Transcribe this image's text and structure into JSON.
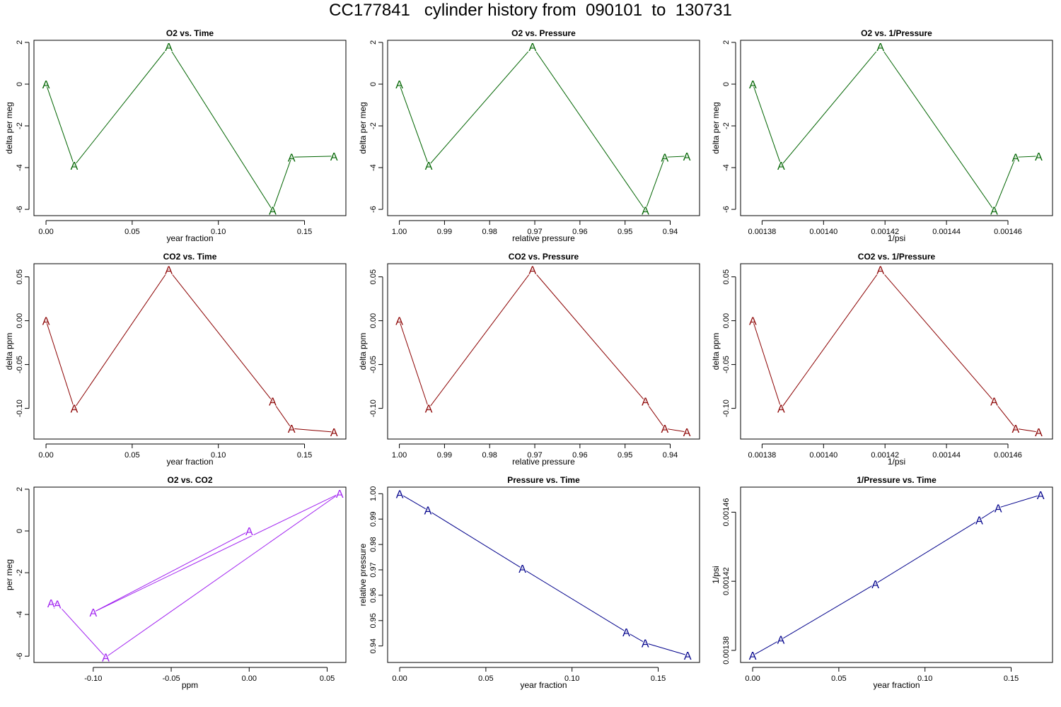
{
  "page": {
    "title": "CC177841   cylinder history from  090101  to  130731"
  },
  "colors": {
    "o2": "#006400",
    "co2": "#8b0000",
    "o2co2": "#a020f0",
    "pressure": "#00008b"
  },
  "chart_data": [
    {
      "type": "line",
      "title": "O2 vs. Time",
      "xlabel": "year fraction",
      "ylabel": "delta per meg",
      "color_key": "o2",
      "marker": "A",
      "xlim": [
        -0.007,
        0.174
      ],
      "ylim": [
        -6.3,
        2.1
      ],
      "xticks": [
        0,
        0.05,
        0.1,
        0.15
      ],
      "xtick_labels": [
        "0.00",
        "0.05",
        "0.10",
        "0.15"
      ],
      "yticks": [
        2,
        0,
        -2,
        -4,
        -6
      ],
      "ytick_labels": [
        "2",
        "0",
        "-2",
        "-4",
        "-6"
      ],
      "x": [
        0.0,
        0.0164,
        0.0712,
        0.1315,
        0.1425,
        0.1671
      ],
      "y": [
        0.0,
        -3.9,
        1.8,
        -6.05,
        -3.5,
        -3.45
      ]
    },
    {
      "type": "line",
      "title": "O2 vs. Pressure",
      "xlabel": "relative pressure",
      "ylabel": "delta per meg",
      "color_key": "o2",
      "marker": "A",
      "xlim": [
        1.0026,
        0.9335
      ],
      "ylim": [
        -6.3,
        2.1
      ],
      "xticks": [
        1.0,
        0.99,
        0.98,
        0.97,
        0.96,
        0.95,
        0.94
      ],
      "xtick_labels": [
        "1.00",
        "0.99",
        "0.98",
        "0.97",
        "0.96",
        "0.95",
        "0.94"
      ],
      "yticks": [
        2,
        0,
        -2,
        -4,
        -6
      ],
      "ytick_labels": [
        "2",
        "0",
        "-2",
        "-4",
        "-6"
      ],
      "x": [
        1.0,
        0.9935,
        0.9705,
        0.9455,
        0.9412,
        0.9363
      ],
      "y": [
        0.0,
        -3.9,
        1.8,
        -6.05,
        -3.5,
        -3.45
      ]
    },
    {
      "type": "line",
      "title": "O2 vs. 1/Pressure",
      "xlabel": "1/psi",
      "ylabel": "delta per meg",
      "color_key": "o2",
      "marker": "A",
      "xlim": [
        0.001373,
        0.0014745
      ],
      "ylim": [
        -6.3,
        2.1
      ],
      "xticks": [
        0.00138,
        0.0014,
        0.00142,
        0.00144,
        0.00146
      ],
      "xtick_labels": [
        "0.00138",
        "0.00140",
        "0.00142",
        "0.00144",
        "0.00146"
      ],
      "yticks": [
        2,
        0,
        -2,
        -4,
        -6
      ],
      "ytick_labels": [
        "2",
        "0",
        "-2",
        "-4",
        "-6"
      ],
      "x": [
        0.001377,
        0.0013862,
        0.0014185,
        0.0014555,
        0.0014625,
        0.00147
      ],
      "y": [
        0.0,
        -3.9,
        1.8,
        -6.05,
        -3.5,
        -3.45
      ]
    },
    {
      "type": "line",
      "title": "CO2 vs. Time",
      "xlabel": "year fraction",
      "ylabel": "delta ppm",
      "color_key": "co2",
      "marker": "A",
      "xlim": [
        -0.007,
        0.174
      ],
      "ylim": [
        -0.135,
        0.065
      ],
      "xticks": [
        0,
        0.05,
        0.1,
        0.15
      ],
      "xtick_labels": [
        "0.00",
        "0.05",
        "0.10",
        "0.15"
      ],
      "yticks": [
        0.05,
        0.0,
        -0.05,
        -0.1
      ],
      "ytick_labels": [
        "0.05",
        "0.00",
        "-0.05",
        "-0.10"
      ],
      "x": [
        0.0,
        0.0164,
        0.0712,
        0.1315,
        0.1425,
        0.1671
      ],
      "y": [
        0.0,
        -0.1,
        0.058,
        -0.092,
        -0.123,
        -0.127
      ]
    },
    {
      "type": "line",
      "title": "CO2 vs. Pressure",
      "xlabel": "relative pressure",
      "ylabel": "delta ppm",
      "color_key": "co2",
      "marker": "A",
      "xlim": [
        1.0026,
        0.9335
      ],
      "ylim": [
        -0.135,
        0.065
      ],
      "xticks": [
        1.0,
        0.99,
        0.98,
        0.97,
        0.96,
        0.95,
        0.94
      ],
      "xtick_labels": [
        "1.00",
        "0.99",
        "0.98",
        "0.97",
        "0.96",
        "0.95",
        "0.94"
      ],
      "yticks": [
        0.05,
        0.0,
        -0.05,
        -0.1
      ],
      "ytick_labels": [
        "0.05",
        "0.00",
        "-0.05",
        "-0.10"
      ],
      "x": [
        1.0,
        0.9935,
        0.9705,
        0.9455,
        0.9412,
        0.9363
      ],
      "y": [
        0.0,
        -0.1,
        0.058,
        -0.092,
        -0.123,
        -0.127
      ]
    },
    {
      "type": "line",
      "title": "CO2 vs. 1/Pressure",
      "xlabel": "1/psi",
      "ylabel": "delta ppm",
      "color_key": "co2",
      "marker": "A",
      "xlim": [
        0.001373,
        0.0014745
      ],
      "ylim": [
        -0.135,
        0.065
      ],
      "xticks": [
        0.00138,
        0.0014,
        0.00142,
        0.00144,
        0.00146
      ],
      "xtick_labels": [
        "0.00138",
        "0.00140",
        "0.00142",
        "0.00144",
        "0.00146"
      ],
      "yticks": [
        0.05,
        0.0,
        -0.05,
        -0.1
      ],
      "ytick_labels": [
        "0.05",
        "0.00",
        "-0.05",
        "-0.10"
      ],
      "x": [
        0.001377,
        0.0013862,
        0.0014185,
        0.0014555,
        0.0014625,
        0.00147
      ],
      "y": [
        0.0,
        -0.1,
        0.058,
        -0.092,
        -0.123,
        -0.127
      ]
    },
    {
      "type": "line",
      "title": "O2 vs. CO2",
      "xlabel": "ppm",
      "ylabel": "per meg",
      "color_key": "o2co2",
      "marker": "A",
      "xlim": [
        -0.138,
        0.062
      ],
      "ylim": [
        -6.3,
        2.1
      ],
      "xticks": [
        -0.1,
        -0.05,
        0.0,
        0.05
      ],
      "xtick_labels": [
        "-0.10",
        "-0.05",
        "0.00",
        "0.05"
      ],
      "yticks": [
        2,
        0,
        -2,
        -4,
        -6
      ],
      "ytick_labels": [
        "2",
        "0",
        "-2",
        "-4",
        "-6"
      ],
      "x": [
        0.0,
        -0.1,
        0.058,
        -0.092,
        -0.123,
        -0.127
      ],
      "y": [
        0.0,
        -3.9,
        1.8,
        -6.05,
        -3.5,
        -3.45
      ]
    },
    {
      "type": "line",
      "title": "Pressure vs. Time",
      "xlabel": "year fraction",
      "ylabel": "relative pressure",
      "color_key": "pressure",
      "marker": "A",
      "xlim": [
        -0.007,
        0.174
      ],
      "ylim": [
        0.9335,
        1.0026
      ],
      "xticks": [
        0,
        0.05,
        0.1,
        0.15
      ],
      "xtick_labels": [
        "0.00",
        "0.05",
        "0.10",
        "0.15"
      ],
      "yticks": [
        0.94,
        0.95,
        0.96,
        0.97,
        0.98,
        0.99,
        1.0
      ],
      "ytick_labels": [
        "0.94",
        "0.95",
        "0.96",
        "0.97",
        "0.98",
        "0.99",
        "1.00"
      ],
      "x": [
        0.0,
        0.0164,
        0.0712,
        0.1315,
        0.1425,
        0.1671
      ],
      "y": [
        1.0,
        0.9935,
        0.9705,
        0.9455,
        0.9412,
        0.9363
      ]
    },
    {
      "type": "line",
      "title": "1/Pressure vs. Time",
      "xlabel": "year fraction",
      "ylabel": "1/psi",
      "color_key": "pressure",
      "marker": "A",
      "xlim": [
        -0.007,
        0.174
      ],
      "ylim": [
        0.001373,
        0.0014745
      ],
      "xticks": [
        0,
        0.05,
        0.1,
        0.15
      ],
      "xtick_labels": [
        "0.00",
        "0.05",
        "0.10",
        "0.15"
      ],
      "yticks": [
        0.00138,
        0.00142,
        0.00146
      ],
      "ytick_labels": [
        "0.00138",
        "0.00142",
        "0.00146"
      ],
      "x": [
        0.0,
        0.0164,
        0.0712,
        0.1315,
        0.1425,
        0.1671
      ],
      "y": [
        0.001377,
        0.0013862,
        0.0014185,
        0.0014555,
        0.0014625,
        0.00147
      ]
    }
  ]
}
